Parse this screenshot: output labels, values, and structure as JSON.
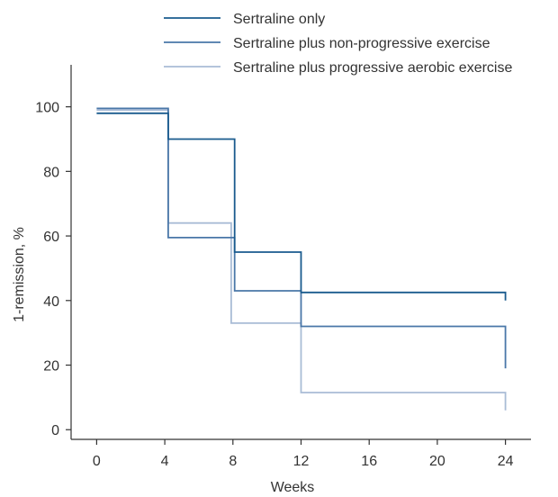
{
  "chart_data": {
    "type": "line",
    "step": true,
    "xlabel": "Weeks",
    "ylabel": "1-remission, %",
    "xlim": [
      -1.5,
      25.5
    ],
    "ylim": [
      -3,
      113
    ],
    "xticks": [
      0,
      4,
      8,
      12,
      16,
      20,
      24
    ],
    "yticks": [
      0,
      20,
      40,
      60,
      80,
      100
    ],
    "xtick_labels": [
      "0",
      "4",
      "8",
      "12",
      "16",
      "20",
      "24"
    ],
    "ytick_labels": [
      "0",
      "20",
      "40",
      "60",
      "80",
      "100"
    ],
    "grid": false,
    "legend_position": "top",
    "series": [
      {
        "name": "Sertraline only",
        "color": "#1a5b8e",
        "points": [
          [
            0,
            98
          ],
          [
            4.2,
            98
          ],
          [
            4.2,
            90
          ],
          [
            8.1,
            90
          ],
          [
            8.1,
            55
          ],
          [
            12,
            55
          ],
          [
            12,
            42.5
          ],
          [
            24,
            42.5
          ],
          [
            24,
            40
          ]
        ]
      },
      {
        "name": "Sertraline plus non-progressive exercise",
        "color": "#4a77a8",
        "points": [
          [
            0,
            99.5
          ],
          [
            4.2,
            99.5
          ],
          [
            4.2,
            59.5
          ],
          [
            8.1,
            59.5
          ],
          [
            8.1,
            43
          ],
          [
            12,
            43
          ],
          [
            12,
            32
          ],
          [
            24,
            32
          ],
          [
            24,
            19
          ]
        ]
      },
      {
        "name": "Sertraline plus progressive aerobic exercise",
        "color": "#a9bcd6",
        "points": [
          [
            0,
            99
          ],
          [
            4.2,
            99
          ],
          [
            4.2,
            64
          ],
          [
            7.9,
            64
          ],
          [
            7.9,
            33
          ],
          [
            12,
            33
          ],
          [
            12,
            11.5
          ],
          [
            24,
            11.5
          ],
          [
            24,
            6
          ]
        ]
      }
    ]
  }
}
